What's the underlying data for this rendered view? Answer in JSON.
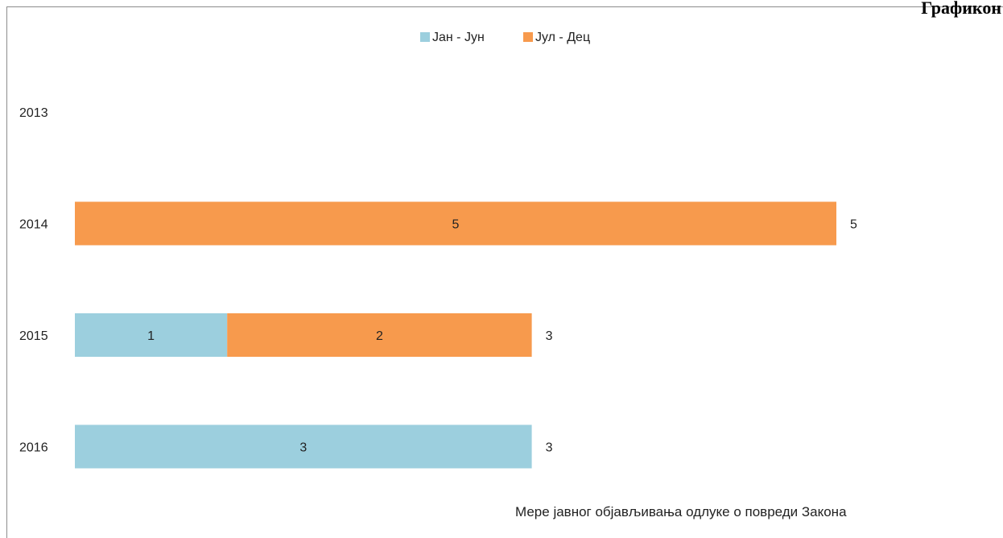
{
  "page_heading": "Графикон",
  "footer_caption": "Мере јавног објављивања одлуке о повреди Закона",
  "chart_data": {
    "type": "bar",
    "orientation": "horizontal",
    "stacked": true,
    "categories": [
      "2013",
      "2014",
      "2015",
      "2016"
    ],
    "series": [
      {
        "name": "Јан - Јун",
        "color": "#9ccfde",
        "values": [
          0,
          0,
          1,
          3
        ],
        "labels": [
          "",
          "",
          "1",
          "3"
        ]
      },
      {
        "name": "Јул - Дец",
        "color": "#f79a4d",
        "values": [
          0,
          5,
          2,
          0
        ],
        "labels": [
          "",
          "5",
          "2",
          ""
        ]
      }
    ],
    "totals": [
      "",
      "5",
      "3",
      "3"
    ],
    "xlim": [
      0,
      5
    ],
    "legend_position": "top-center",
    "grid": false,
    "title": "",
    "xlabel": "",
    "ylabel": ""
  }
}
